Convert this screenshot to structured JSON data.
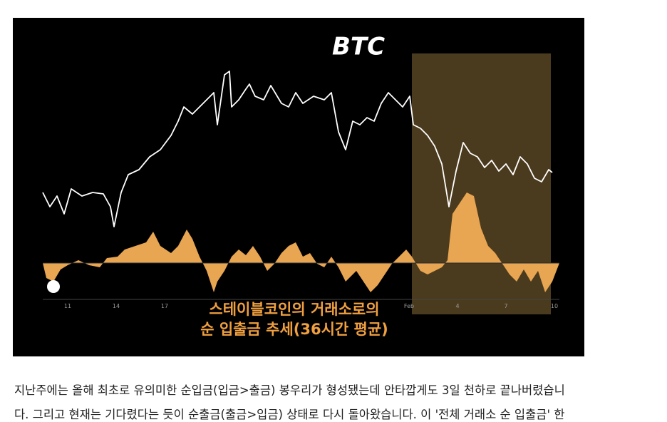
{
  "figure": {
    "title": "BTC",
    "caption": [
      "스테이블코인의 거래소로의",
      "순 입출금 추세(36시간 평균)"
    ],
    "x_labels": [
      "11",
      "14",
      "17",
      "Feb",
      "4",
      "7",
      "10"
    ]
  },
  "body": {
    "lines": [
      "지난주에는 올해 최초로 유의미한 순입금(입금>출금) 봉우리가 형성됐는데 안타깝게도 3일 천하로 끝나버렸습니",
      "다. 그리고 현재는 기다렸다는 듯이 순출금(출금>입금) 상태로 다시 돌아왔습니다. 이 '전체 거래소 순 입출금' 한"
    ]
  }
}
